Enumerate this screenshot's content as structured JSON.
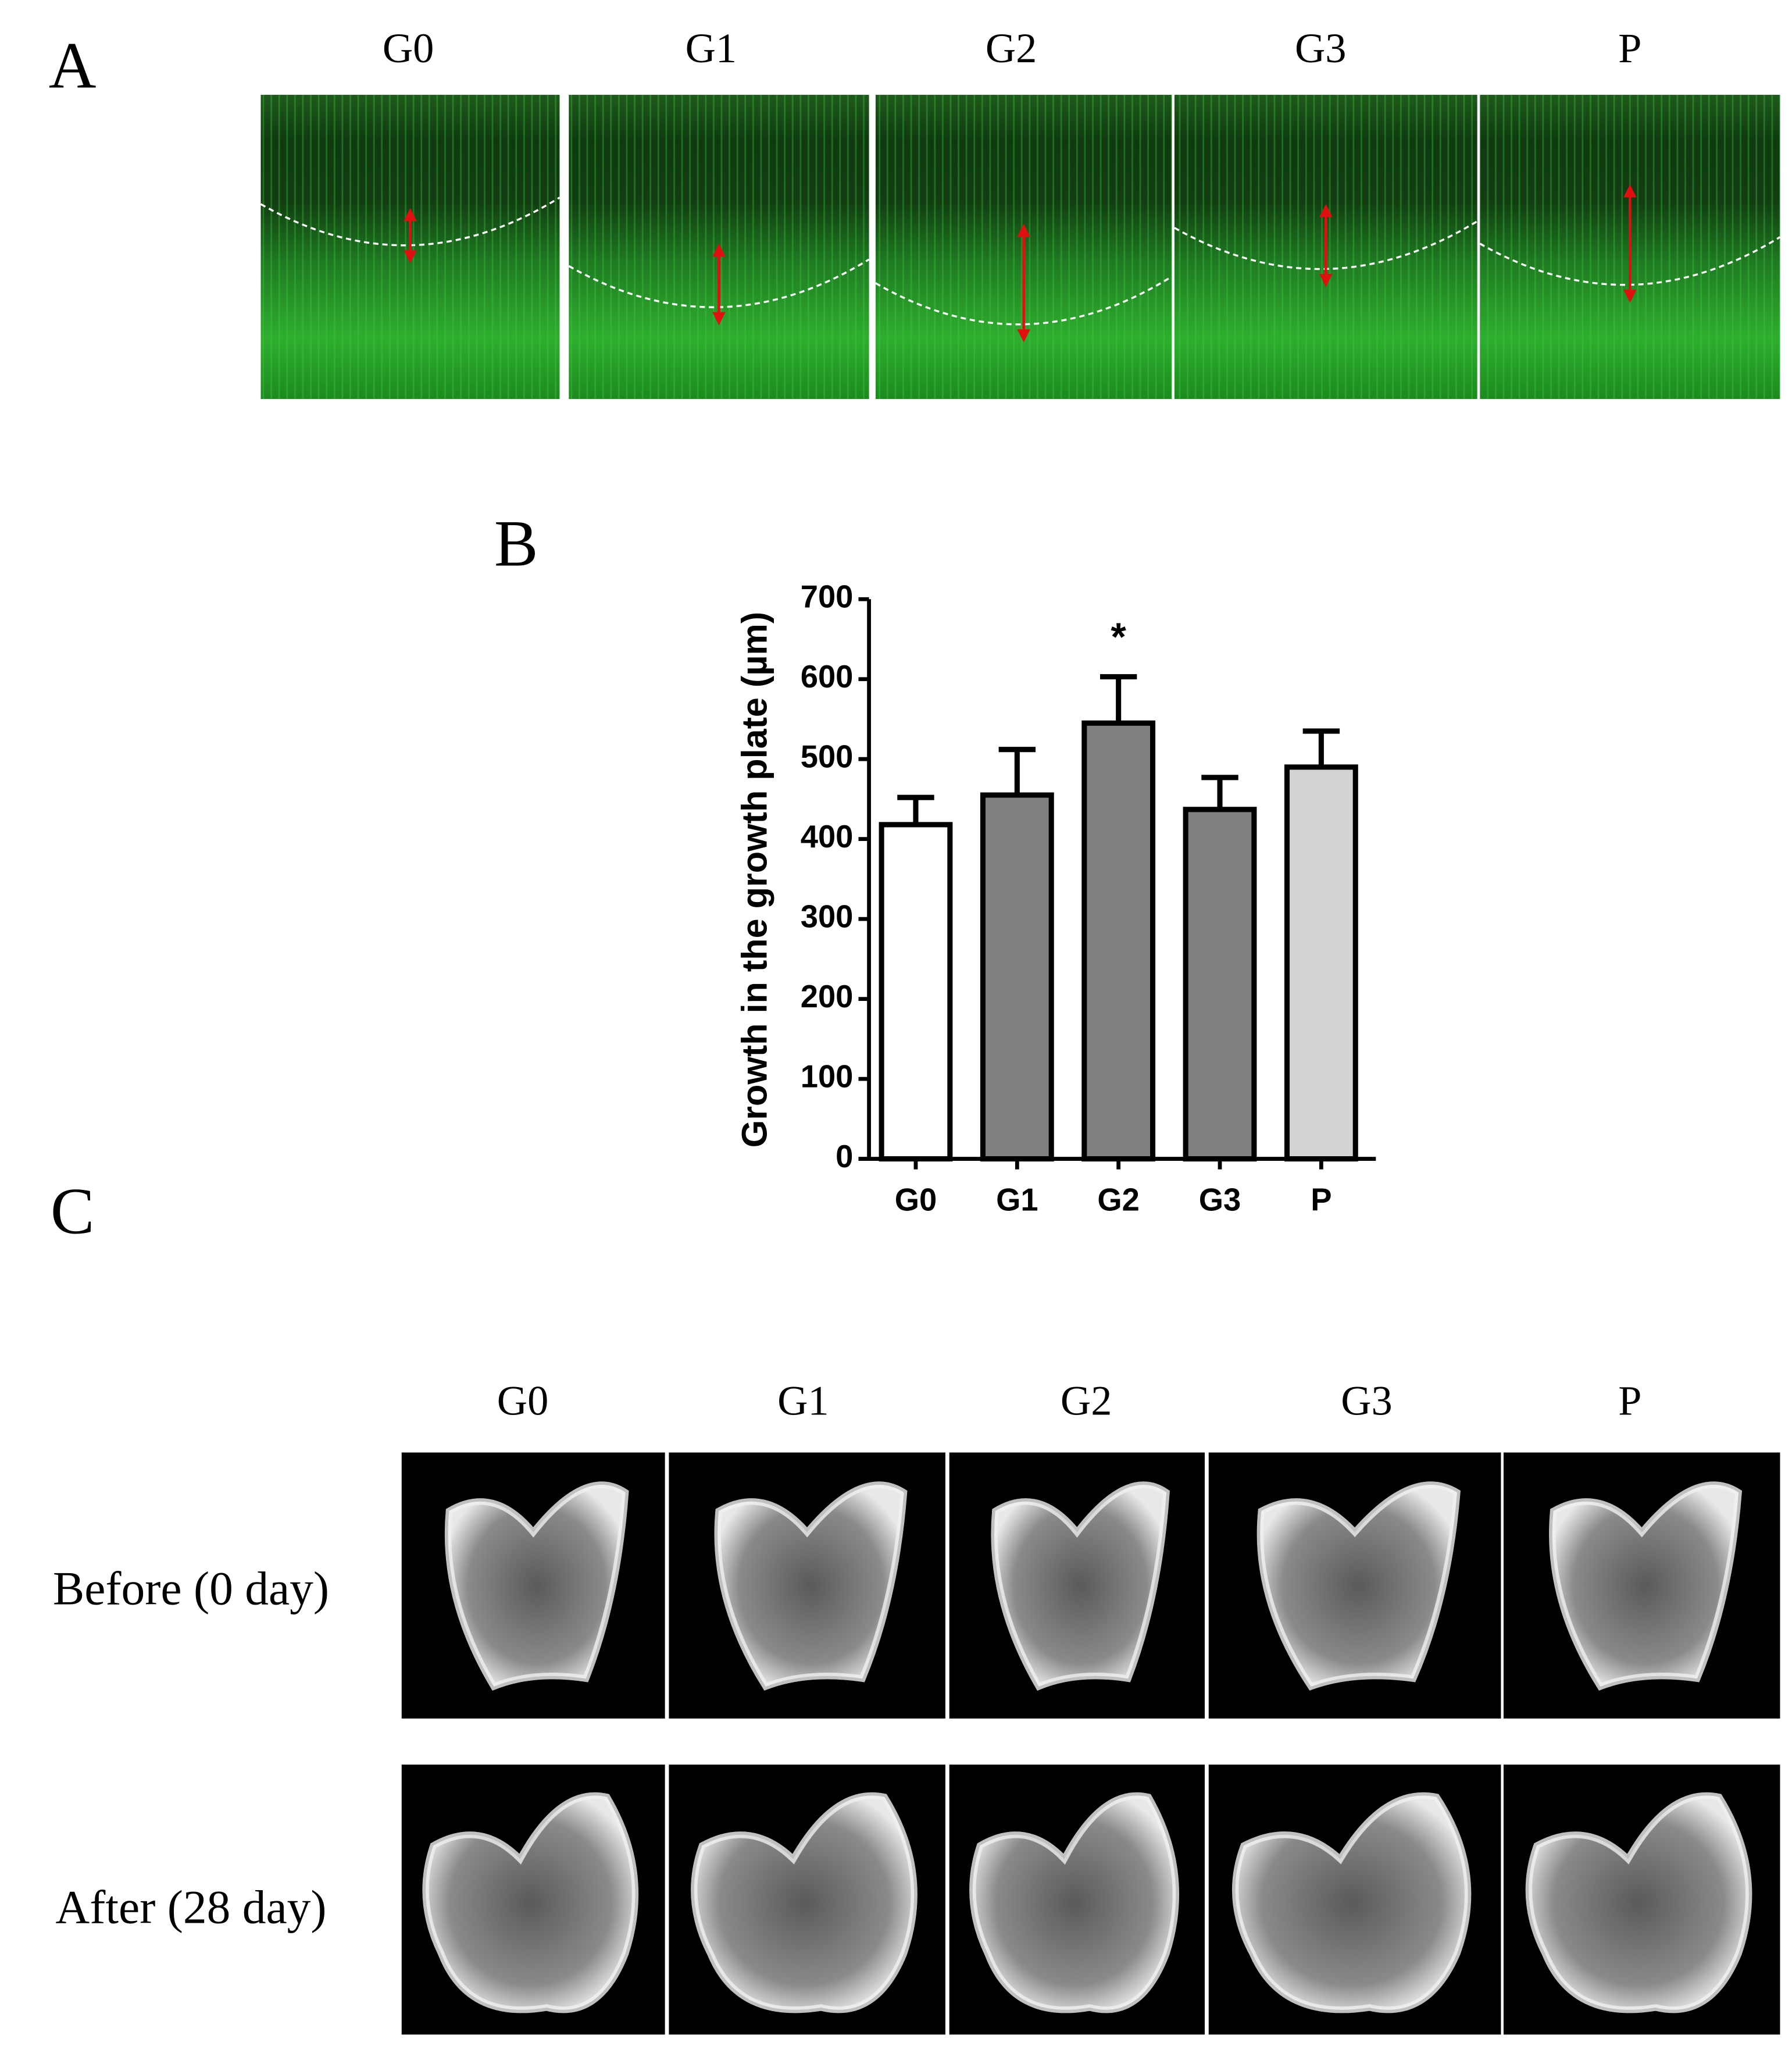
{
  "panel_labels": [
    "A",
    "B",
    "C"
  ],
  "histology": {
    "columns": [
      "G0",
      "G1",
      "G2",
      "G3",
      "P"
    ]
  },
  "microct": {
    "columns": [
      "G0",
      "G1",
      "G2",
      "G3",
      "P"
    ],
    "rows": [
      "Before (0 day)",
      "After (28 day)"
    ]
  },
  "chart_data": {
    "type": "bar",
    "y_label": "Growth in the growth plate (µm)",
    "categories": [
      "G0",
      "G1",
      "G2",
      "G3",
      "P"
    ],
    "values": [
      418,
      455,
      545,
      437,
      490
    ],
    "errors": [
      34,
      57,
      58,
      40,
      45
    ],
    "colors": [
      "#ffffff",
      "#808080",
      "#808080",
      "#808080",
      "#d3d3d3"
    ],
    "significance": [
      null,
      null,
      "*",
      null,
      null
    ],
    "ylim": [
      0,
      700
    ],
    "yticks": [
      0,
      100,
      200,
      300,
      400,
      500,
      600,
      700
    ]
  }
}
